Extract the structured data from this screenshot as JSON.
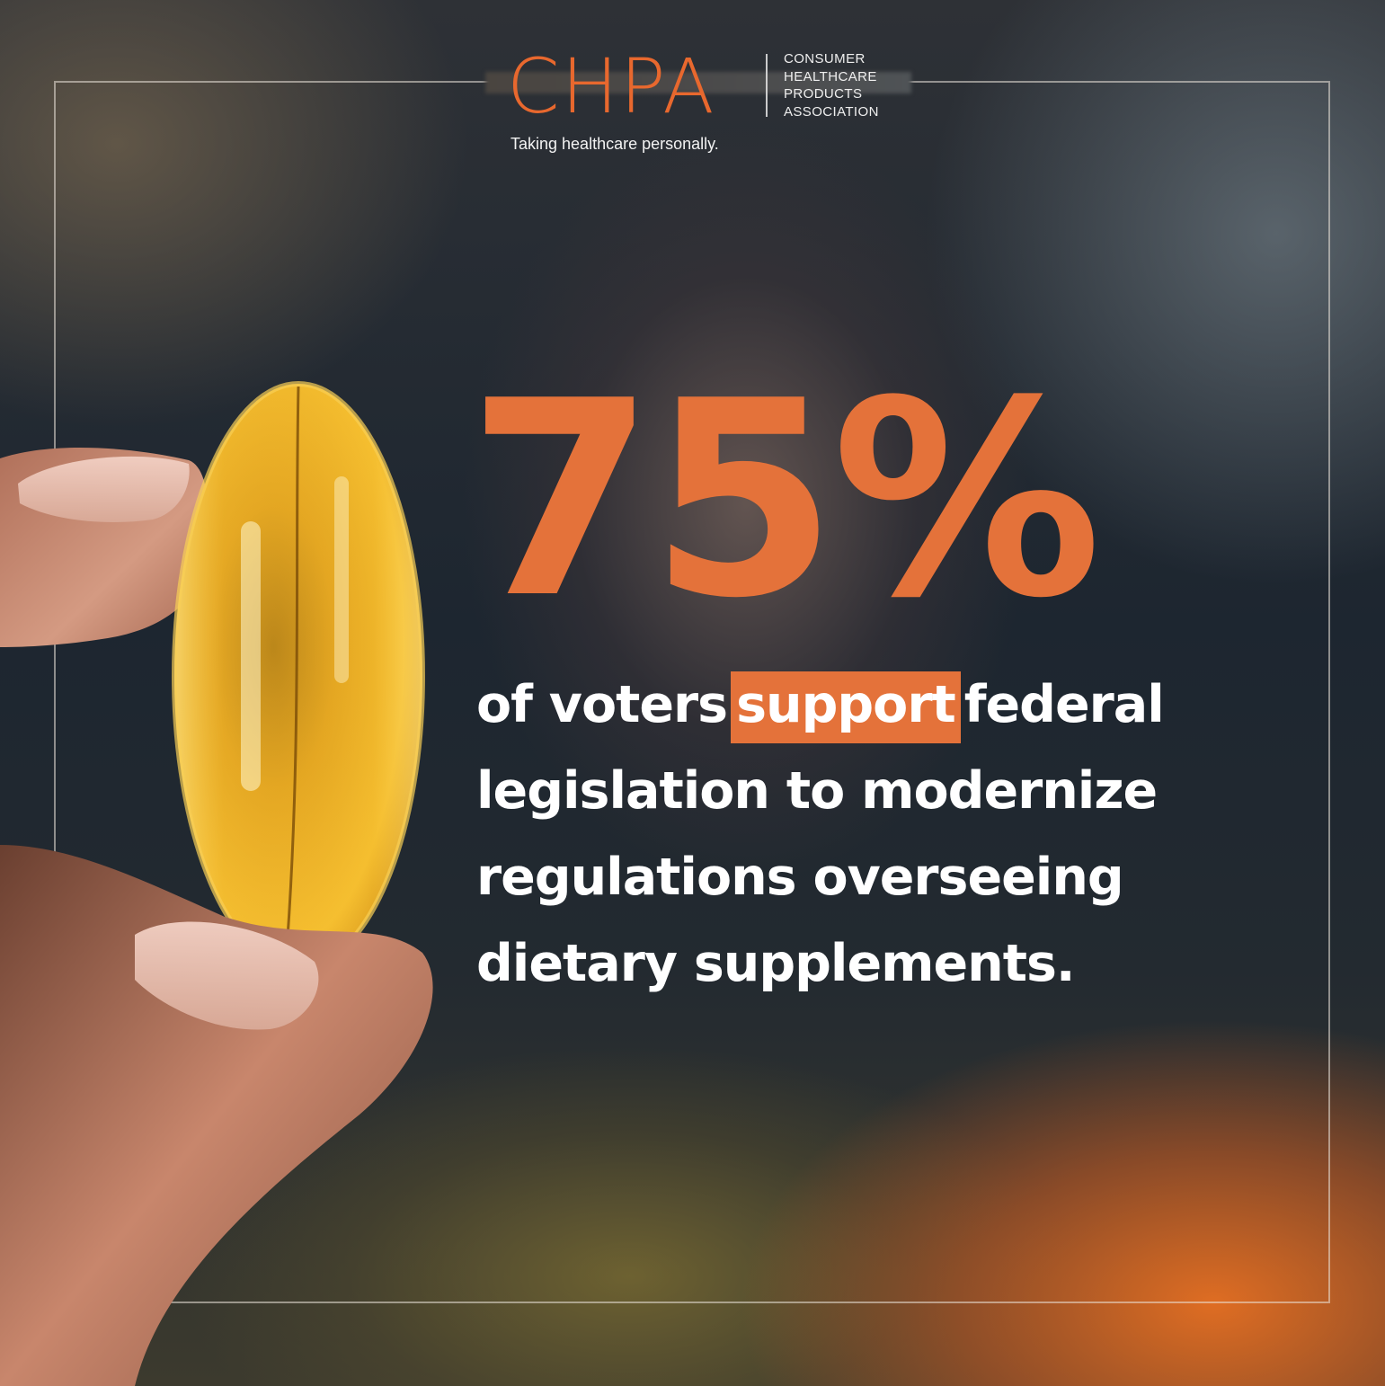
{
  "logo": {
    "mark": "CHPA",
    "org_lines": [
      "CONSUMER",
      "HEALTHCARE",
      "PRODUCTS",
      "ASSOCIATION"
    ],
    "tagline": "Taking healthcare personally."
  },
  "headline": {
    "stat": "75%",
    "line1_before": "of voters",
    "line1_highlight": "support",
    "line1_after": "federal",
    "line2": "legislation to modernize",
    "line3": "regulations overseeing",
    "line4": "dietary supplements."
  },
  "colors": {
    "accent": "#e4723a",
    "logo_orange": "#e8682e",
    "text": "#ffffff"
  },
  "illustration": {
    "subject": "fingers-holding-softgel-capsule-icon"
  }
}
